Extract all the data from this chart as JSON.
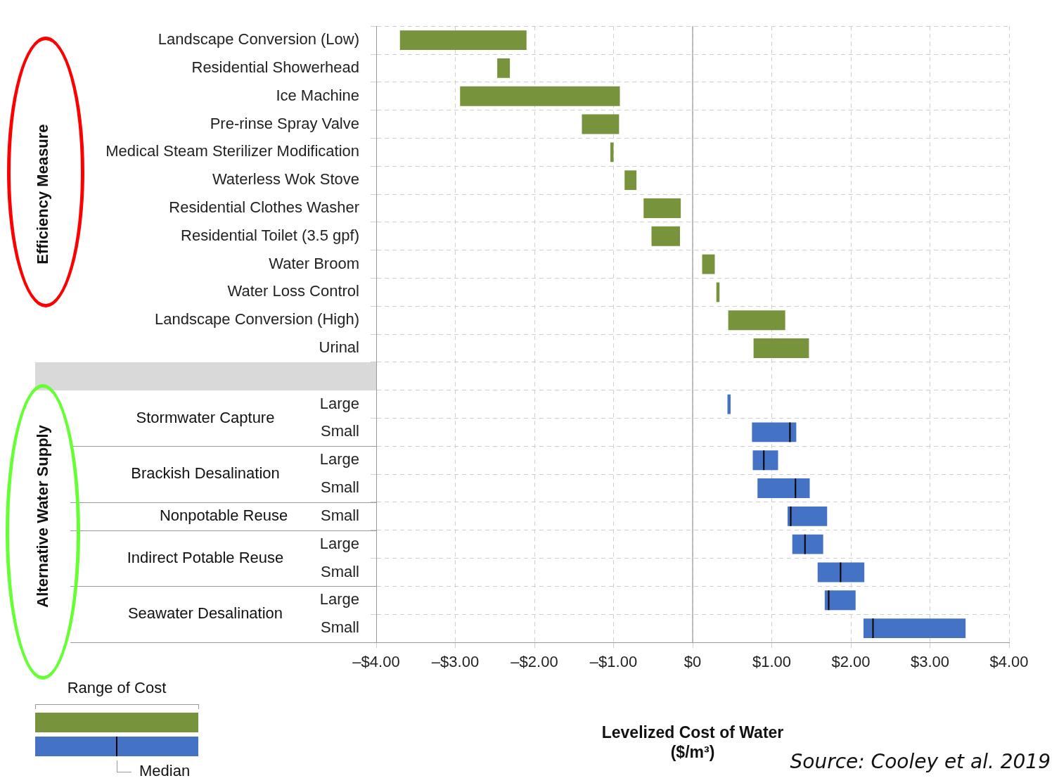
{
  "chart_data": {
    "type": "box",
    "orientation": "horizontal",
    "xlabel": "Levelized Cost of Water\n($/m³)",
    "categories": [
      "Landscape Conversion (Low)",
      "Residential Showerhead",
      "Ice Machine",
      "Pre-rinse Spray Valve",
      "Medical Steam Sterilizer Modification",
      "Waterless Wok Stove",
      "Residential Clothes Washer",
      "Residential Toilet (3.5 gpf)",
      "Water Broom",
      "Water Loss Control",
      "Landscape Conversion (High)",
      "Urinal",
      null,
      "Large",
      "Small",
      "Large",
      "Small",
      "Small",
      "Large",
      "Small",
      "Large",
      "Small"
    ],
    "series": [
      {
        "colors": [
          "#77933c",
          "#77933c",
          "#77933c",
          "#77933c",
          "#77933c",
          "#77933c",
          "#77933c",
          "#77933c",
          "#77933c",
          "#77933c",
          "#77933c",
          "#77933c",
          "#77933c",
          "#4472c4",
          "#4472c4",
          "#4472c4",
          "#4472c4",
          "#4472c4",
          "#4472c4",
          "#4472c4",
          "#4472c4",
          "#4472c4"
        ],
        "boxes": [
          {
            "low": -3.7,
            "q1": -3.7,
            "median": null,
            "q3": -2.1,
            "high": -2.1
          },
          {
            "low": -2.47,
            "q1": -2.47,
            "median": null,
            "q3": -2.31,
            "high": -2.31
          },
          {
            "low": -2.94,
            "q1": -2.94,
            "median": null,
            "q3": -0.92,
            "high": -0.92
          },
          {
            "low": -1.4,
            "q1": -1.4,
            "median": null,
            "q3": -0.93,
            "high": -0.93
          },
          {
            "low": -1.04,
            "q1": -1.04,
            "median": null,
            "q3": -1.0,
            "high": -1.0
          },
          {
            "low": -0.86,
            "q1": -0.86,
            "median": null,
            "q3": -0.71,
            "high": -0.71
          },
          {
            "low": -0.62,
            "q1": -0.62,
            "median": null,
            "q3": -0.15,
            "high": -0.15
          },
          {
            "low": -0.52,
            "q1": -0.52,
            "median": null,
            "q3": -0.16,
            "high": -0.16
          },
          {
            "low": 0.12,
            "q1": 0.12,
            "median": null,
            "q3": 0.28,
            "high": 0.28
          },
          {
            "low": 0.3,
            "q1": 0.3,
            "median": null,
            "q3": 0.34,
            "high": 0.34
          },
          {
            "low": 0.45,
            "q1": 0.45,
            "median": null,
            "q3": 1.17,
            "high": 1.17
          },
          {
            "low": 0.77,
            "q1": 0.77,
            "median": null,
            "q3": 1.47,
            "high": 1.47
          },
          null,
          {
            "low": 0.44,
            "q1": 0.44,
            "median": null,
            "q3": 0.48,
            "high": 0.48
          },
          {
            "low": 0.75,
            "q1": 0.75,
            "median": 1.23,
            "q3": 1.31,
            "high": 1.31
          },
          {
            "low": 0.76,
            "q1": 0.76,
            "median": 0.9,
            "q3": 1.08,
            "high": 1.08
          },
          {
            "low": 0.82,
            "q1": 0.82,
            "median": 1.3,
            "q3": 1.48,
            "high": 1.48
          },
          {
            "low": 1.2,
            "q1": 1.2,
            "median": 1.24,
            "q3": 1.7,
            "high": 1.7
          },
          {
            "low": 1.26,
            "q1": 1.26,
            "median": 1.42,
            "q3": 1.65,
            "high": 1.65
          },
          {
            "low": 1.58,
            "q1": 1.58,
            "median": 1.87,
            "q3": 2.17,
            "high": 2.17
          },
          {
            "low": 1.67,
            "q1": 1.67,
            "median": 1.72,
            "q3": 2.06,
            "high": 2.06
          },
          {
            "low": 2.16,
            "q1": 2.16,
            "median": 2.28,
            "q3": 3.45,
            "high": 3.45
          }
        ]
      }
    ],
    "xlim": [
      -4,
      4
    ],
    "xticks": [
      {
        "value": -4,
        "label": "–$4.00"
      },
      {
        "value": -3,
        "label": "–$3.00"
      },
      {
        "value": -2,
        "label": "–$2.00"
      },
      {
        "value": -1,
        "label": "–$1.00"
      },
      {
        "value": 0,
        "label": "$0"
      },
      {
        "value": 1,
        "label": "$1.00"
      },
      {
        "value": 2,
        "label": "$2.00"
      },
      {
        "value": 3,
        "label": "$3.00"
      },
      {
        "value": 4,
        "label": "$4.00"
      }
    ],
    "ref_lines": [
      {
        "axis": "x",
        "value": 0,
        "color": "#aaaaaa"
      }
    ],
    "grid": true,
    "legend_title": "Range of Cost",
    "annotations": [
      "Efficiency Measure",
      "Alternative Water Supply",
      "Stormwater Capture",
      "Brackish Desalination",
      "Nonpotable Reuse",
      "Indirect Potable Reuse",
      "Seawater Desalination",
      "Source: Cooley et al. 2019",
      "Median"
    ]
  }
}
